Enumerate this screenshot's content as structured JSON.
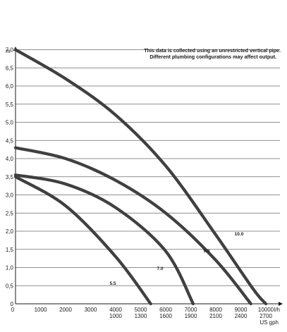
{
  "chart_data": {
    "type": "line",
    "title": "",
    "note": [
      "This data is collected using an unrestricted vertical pipe.",
      "Different plumbing configurations may affect output."
    ],
    "ylabel": "m",
    "xlabel": "l/h",
    "xlabel2": "US gph",
    "ylim": [
      0,
      7.2
    ],
    "xlim": [
      0,
      10700
    ],
    "y_ticks": [
      "0",
      "0,5",
      "1,0",
      "1,5",
      "2,0",
      "2,5",
      "3,0",
      "3,5",
      "4,0",
      "4,5",
      "5,0",
      "5,5",
      "6,0",
      "6,5",
      "7,0"
    ],
    "x_ticks": [
      {
        "lh": "0",
        "gph": ""
      },
      {
        "lh": "1000",
        "gph": ""
      },
      {
        "lh": "2000",
        "gph": ""
      },
      {
        "lh": "3000",
        "gph": ""
      },
      {
        "lh": "4000",
        "gph": "1000"
      },
      {
        "lh": "5000",
        "gph": "1300"
      },
      {
        "lh": "6000",
        "gph": "1600"
      },
      {
        "lh": "7000",
        "gph": "1900"
      },
      {
        "lh": "8000",
        "gph": "2100"
      },
      {
        "lh": "9000",
        "gph": "2400"
      },
      {
        "lh": "10000",
        "gph": "2700"
      }
    ],
    "grid": true,
    "series": [
      {
        "name": "10.0",
        "x": [
          0,
          2000,
          4000,
          6000,
          8000,
          9500,
          10000
        ],
        "y": [
          7.0,
          6.2,
          5.2,
          3.8,
          1.9,
          0.4,
          0
        ]
      },
      {
        "name": "9.0",
        "x": [
          0,
          2000,
          4000,
          6000,
          8000,
          9400
        ],
        "y": [
          4.3,
          4.0,
          3.4,
          2.5,
          1.2,
          0
        ]
      },
      {
        "name": "7.0",
        "x": [
          0,
          2000,
          4000,
          6000,
          7100
        ],
        "y": [
          3.55,
          3.3,
          2.65,
          1.45,
          0
        ]
      },
      {
        "name": "5.5",
        "x": [
          0,
          2000,
          4000,
          5400
        ],
        "y": [
          3.5,
          2.7,
          1.3,
          0
        ]
      }
    ]
  }
}
